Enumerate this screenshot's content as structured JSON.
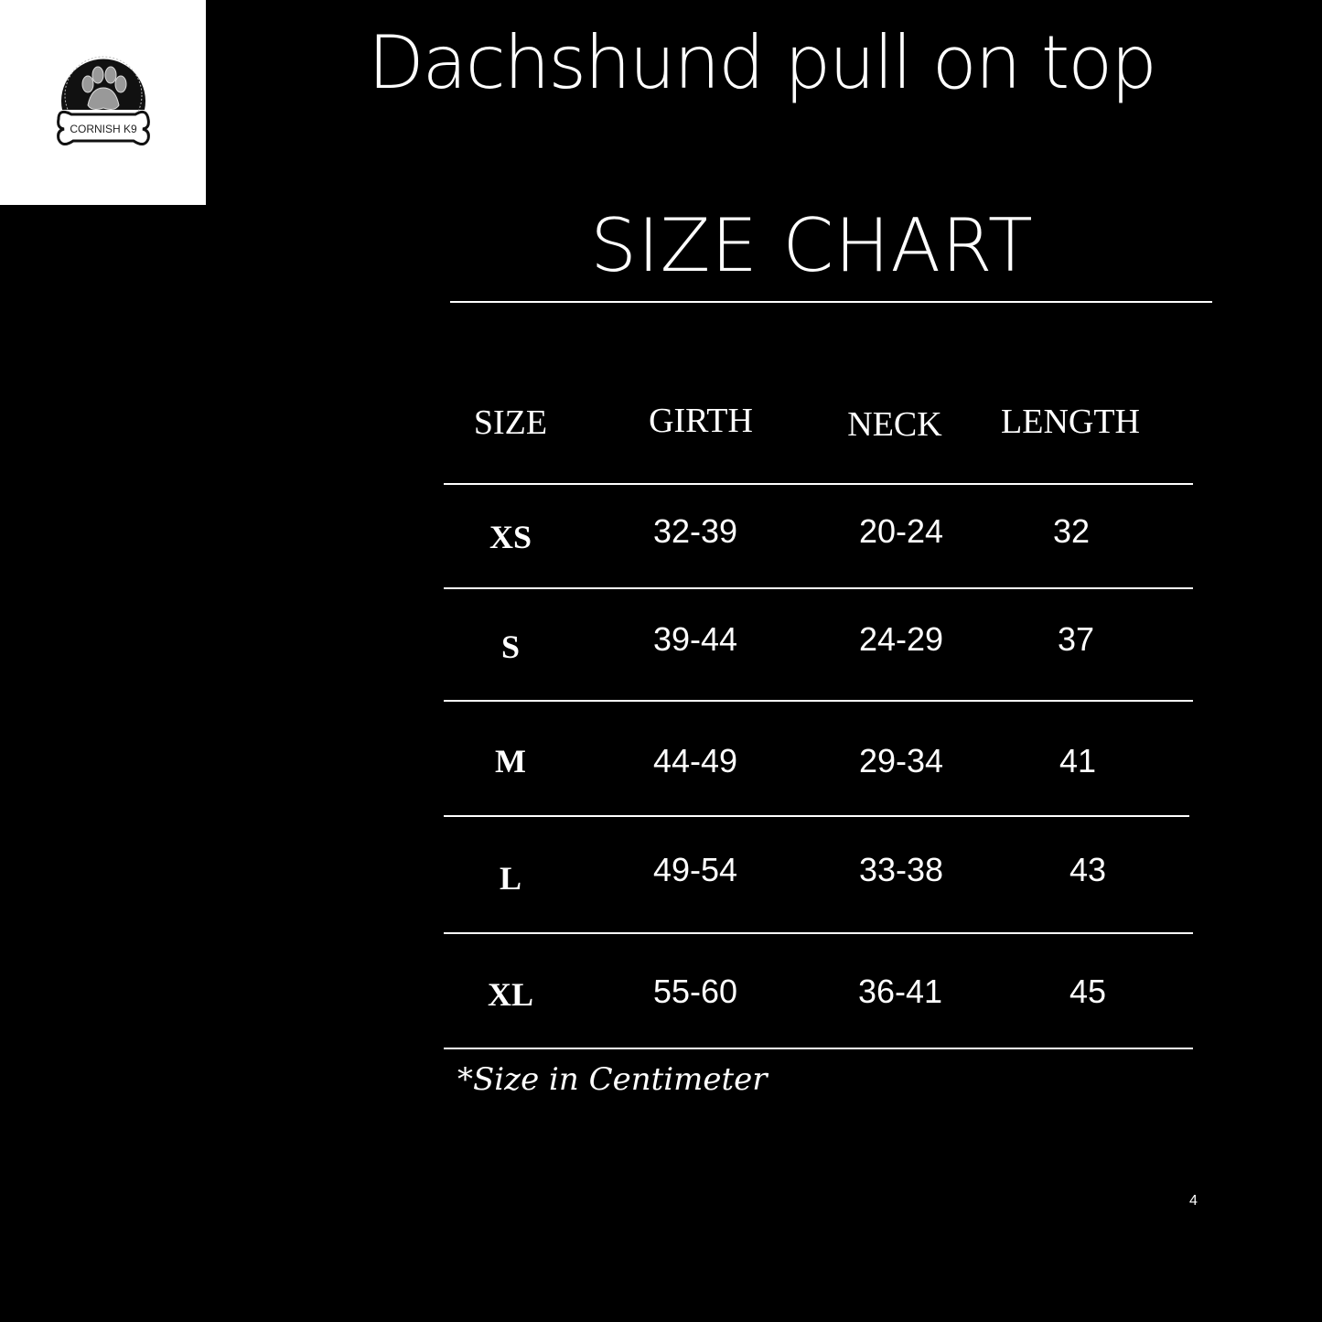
{
  "logo": {
    "text": "CORNISH K9"
  },
  "title": "Dachshund pull on top",
  "subtitle": "SIZE CHART",
  "table": {
    "headers": [
      "SIZE",
      "GIRTH",
      "NECK",
      "LENGTH"
    ],
    "rows": [
      [
        "XS",
        "32-39",
        "20-24",
        "32"
      ],
      [
        "S",
        "39-44",
        "24-29",
        "37"
      ],
      [
        "M",
        "44-49",
        "29-34",
        "41"
      ],
      [
        "L",
        "49-54",
        "33-38",
        "43"
      ],
      [
        "XL",
        "55-60",
        "36-41",
        "45"
      ]
    ]
  },
  "note": "*Size in Centimeter",
  "page_number": "4"
}
